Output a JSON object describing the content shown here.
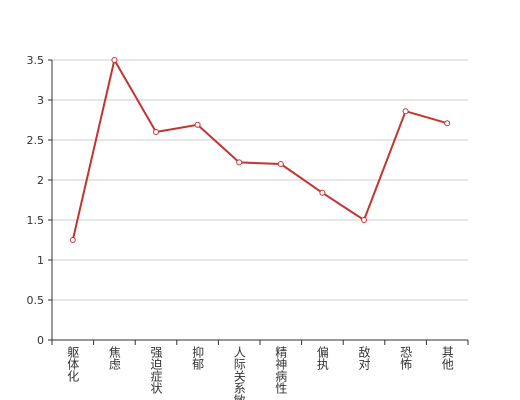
{
  "chart_data": {
    "type": "line",
    "categories": [
      "躯体化",
      "焦虑",
      "强迫症状",
      "抑郁",
      "人际关系敏感",
      "精神病性",
      "偏执",
      "敌对",
      "恐怖",
      "其他"
    ],
    "values": [
      1.25,
      3.5,
      2.6,
      2.69,
      2.22,
      2.2,
      1.84,
      1.5,
      2.86,
      2.71
    ],
    "color": "#c23531",
    "ylim": [
      0,
      3.5
    ],
    "yticks": [
      0,
      0.5,
      1,
      1.5,
      2,
      2.5,
      3,
      3.5
    ],
    "grid": true
  }
}
